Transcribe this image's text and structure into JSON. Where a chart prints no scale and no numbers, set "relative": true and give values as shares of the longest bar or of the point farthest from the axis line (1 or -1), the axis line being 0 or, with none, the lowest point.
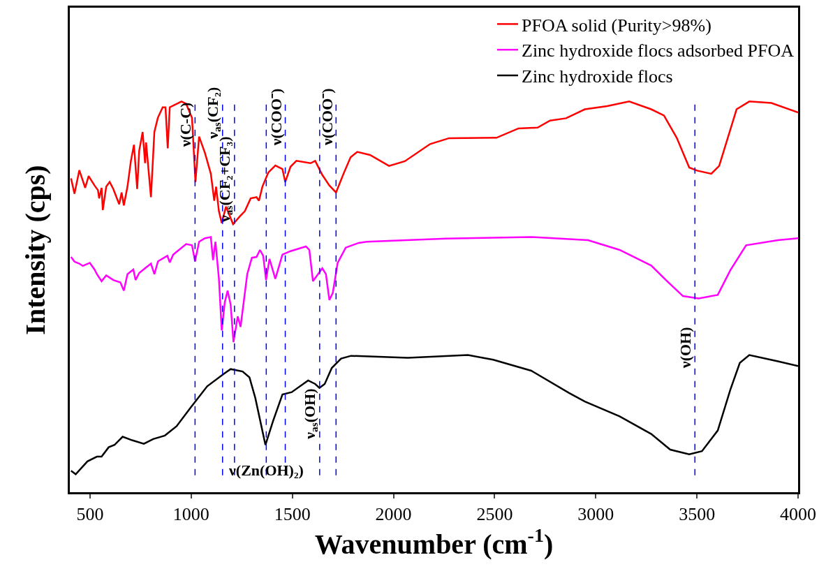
{
  "chart_data": {
    "type": "line",
    "relative": true,
    "xlabel": "Wavenumber (cm$^{-1}$)",
    "ylabel": "Intensity (cps)",
    "xlim": [
      400,
      4000
    ],
    "xticks": [
      500,
      1000,
      1500,
      2000,
      2500,
      3000,
      3500,
      4000
    ],
    "legend": "top right",
    "marker": "none",
    "line_style": "solid",
    "series": [
      {
        "name": "PFOA solid (Purity>98%)",
        "color": "#ff0000",
        "x": [
          406,
          423,
          447,
          476,
          493,
          522,
          539,
          545,
          557,
          563,
          580,
          597,
          615,
          644,
          656,
          667,
          685,
          702,
          717,
          733,
          743,
          760,
          772,
          777,
          801,
          818,
          835,
          859,
          873,
          884,
          894,
          917,
          952,
          975,
          1004,
          1021,
          1039,
          1068,
          1097,
          1114,
          1123,
          1137,
          1151,
          1172,
          1207,
          1242,
          1265,
          1294,
          1323,
          1335,
          1352,
          1381,
          1416,
          1451,
          1465,
          1491,
          1520,
          1590,
          1613,
          1648,
          1683,
          1716,
          1753,
          1788,
          1821,
          1884,
          1978,
          2056,
          2181,
          2275,
          2509,
          2618,
          2712,
          2774,
          2853,
          2946,
          3056,
          3165,
          3274,
          3337,
          3400,
          3462,
          3501,
          3571,
          3610,
          3696,
          3759,
          3868,
          4000
        ],
        "values": [
          0.803,
          0.764,
          0.824,
          0.779,
          0.809,
          0.785,
          0.773,
          0.752,
          0.779,
          0.722,
          0.782,
          0.794,
          0.776,
          0.737,
          0.767,
          0.734,
          0.782,
          0.848,
          0.889,
          0.776,
          0.874,
          0.922,
          0.842,
          0.895,
          0.755,
          0.922,
          0.958,
          0.985,
          0.985,
          0.88,
          0.985,
          0.991,
          1.0,
          0.994,
          0.958,
          0.794,
          0.91,
          0.868,
          0.815,
          0.746,
          0.782,
          0.719,
          0.689,
          0.731,
          0.686,
          0.707,
          0.719,
          0.752,
          0.755,
          0.746,
          0.782,
          0.818,
          0.836,
          0.827,
          0.794,
          0.833,
          0.848,
          0.842,
          0.848,
          0.812,
          0.785,
          0.767,
          0.815,
          0.857,
          0.871,
          0.863,
          0.835,
          0.847,
          0.891,
          0.906,
          0.907,
          0.931,
          0.933,
          0.951,
          0.957,
          0.98,
          0.988,
          1.0,
          0.98,
          0.964,
          0.907,
          0.831,
          0.823,
          0.815,
          0.835,
          0.98,
          1.0,
          0.996,
          0.972
        ]
      },
      {
        "name": "Zinc hydroxide flocs adsorbed PFOA",
        "color": "#ff00ff",
        "x": [
          406,
          423,
          447,
          464,
          499,
          522,
          534,
          557,
          580,
          615,
          650,
          667,
          685,
          714,
          725,
          743,
          772,
          801,
          818,
          836,
          882,
          894,
          911,
          975,
          1004,
          1019,
          1039,
          1068,
          1097,
          1108,
          1120,
          1137,
          1151,
          1166,
          1180,
          1195,
          1209,
          1230,
          1244,
          1277,
          1300,
          1323,
          1340,
          1356,
          1370,
          1387,
          1416,
          1451,
          1491,
          1567,
          1584,
          1602,
          1648,
          1666,
          1683,
          1700,
          1724,
          1764,
          1828,
          1868,
          2259,
          2681,
          2962,
          3118,
          3274,
          3353,
          3431,
          3509,
          3603,
          3665,
          3743,
          3900,
          4000
        ],
        "values": [
          0.602,
          0.59,
          0.585,
          0.579,
          0.587,
          0.57,
          0.558,
          0.54,
          0.555,
          0.543,
          0.537,
          0.516,
          0.558,
          0.57,
          0.543,
          0.561,
          0.573,
          0.585,
          0.558,
          0.591,
          0.605,
          0.588,
          0.608,
          0.635,
          0.632,
          0.591,
          0.641,
          0.65,
          0.653,
          0.594,
          0.641,
          0.546,
          0.414,
          0.486,
          0.516,
          0.48,
          0.384,
          0.45,
          0.423,
          0.558,
          0.6,
          0.602,
          0.62,
          0.605,
          0.543,
          0.597,
          0.546,
          0.608,
          0.617,
          0.629,
          0.62,
          0.54,
          0.573,
          0.558,
          0.492,
          0.51,
          0.587,
          0.626,
          0.638,
          0.641,
          0.649,
          0.653,
          0.645,
          0.62,
          0.58,
          0.54,
          0.502,
          0.496,
          0.505,
          0.568,
          0.632,
          0.645,
          0.65
        ]
      },
      {
        "name": "Zinc hydroxide flocs",
        "color": "#000000",
        "x": [
          406,
          429,
          487,
          534,
          557,
          592,
          621,
          661,
          708,
          766,
          812,
          870,
          928,
          998,
          1079,
          1161,
          1195,
          1254,
          1288,
          1317,
          1367,
          1404,
          1451,
          1497,
          1578,
          1613,
          1634,
          1660,
          1695,
          1741,
          1790,
          2071,
          2368,
          2493,
          2681,
          2868,
          2946,
          3118,
          3274,
          3368,
          3462,
          3525,
          3603,
          3665,
          3712,
          3759,
          3900,
          4000
        ],
        "values": [
          0.055,
          0.046,
          0.079,
          0.091,
          0.091,
          0.115,
          0.121,
          0.142,
          0.133,
          0.124,
          0.136,
          0.145,
          0.169,
          0.217,
          0.271,
          0.303,
          0.315,
          0.309,
          0.294,
          0.241,
          0.121,
          0.181,
          0.25,
          0.256,
          0.286,
          0.277,
          0.267,
          0.277,
          0.318,
          0.342,
          0.349,
          0.344,
          0.351,
          0.339,
          0.311,
          0.254,
          0.232,
          0.194,
          0.149,
          0.109,
          0.097,
          0.105,
          0.158,
          0.262,
          0.331,
          0.351,
          0.335,
          0.323
        ]
      }
    ],
    "ref_lines": [
      {
        "axis": "x",
        "value": 1019,
        "color": "#0000ff",
        "line_style": "dashed"
      },
      {
        "axis": "x",
        "value": 1155,
        "color": "#0000ff",
        "line_style": "dashed"
      },
      {
        "axis": "x",
        "value": 1214,
        "color": "#0000ff",
        "line_style": "dashed"
      },
      {
        "axis": "x",
        "value": 1371,
        "color": "#0000ff",
        "line_style": "dashed"
      },
      {
        "axis": "x",
        "value": 1465,
        "color": "#0000ff",
        "line_style": "dashed"
      },
      {
        "axis": "x",
        "value": 1635,
        "color": "#0000ff",
        "line_style": "dashed"
      },
      {
        "axis": "x",
        "value": 1716,
        "color": "#0000ff",
        "line_style": "dashed"
      },
      {
        "axis": "x",
        "value": 3490,
        "color": "#0000ff",
        "line_style": "dashed"
      }
    ],
    "annotations": [
      {
        "text": "ν(C-C)",
        "x": 1019,
        "y": 0.94
      },
      {
        "text": "ν$_{as}$(CF₂)",
        "x": 1155,
        "y": 0.97
      },
      {
        "text": "ν$_{as}$(CF₂+CF₃)",
        "x": 1214,
        "y": 0.8
      },
      {
        "text": "ν(COO⁻)",
        "x": 1465,
        "y": 0.96
      },
      {
        "text": "ν(COO⁻)",
        "x": 1716,
        "y": 0.96
      },
      {
        "text": "ν(Zn(OH)₂)",
        "x": 1371,
        "y": 0.057
      },
      {
        "text": "ν$_{as}$(OH)",
        "x": 1635,
        "y": 0.2
      },
      {
        "text": "ν(OH)",
        "x": 3490,
        "y": 0.37
      }
    ]
  }
}
